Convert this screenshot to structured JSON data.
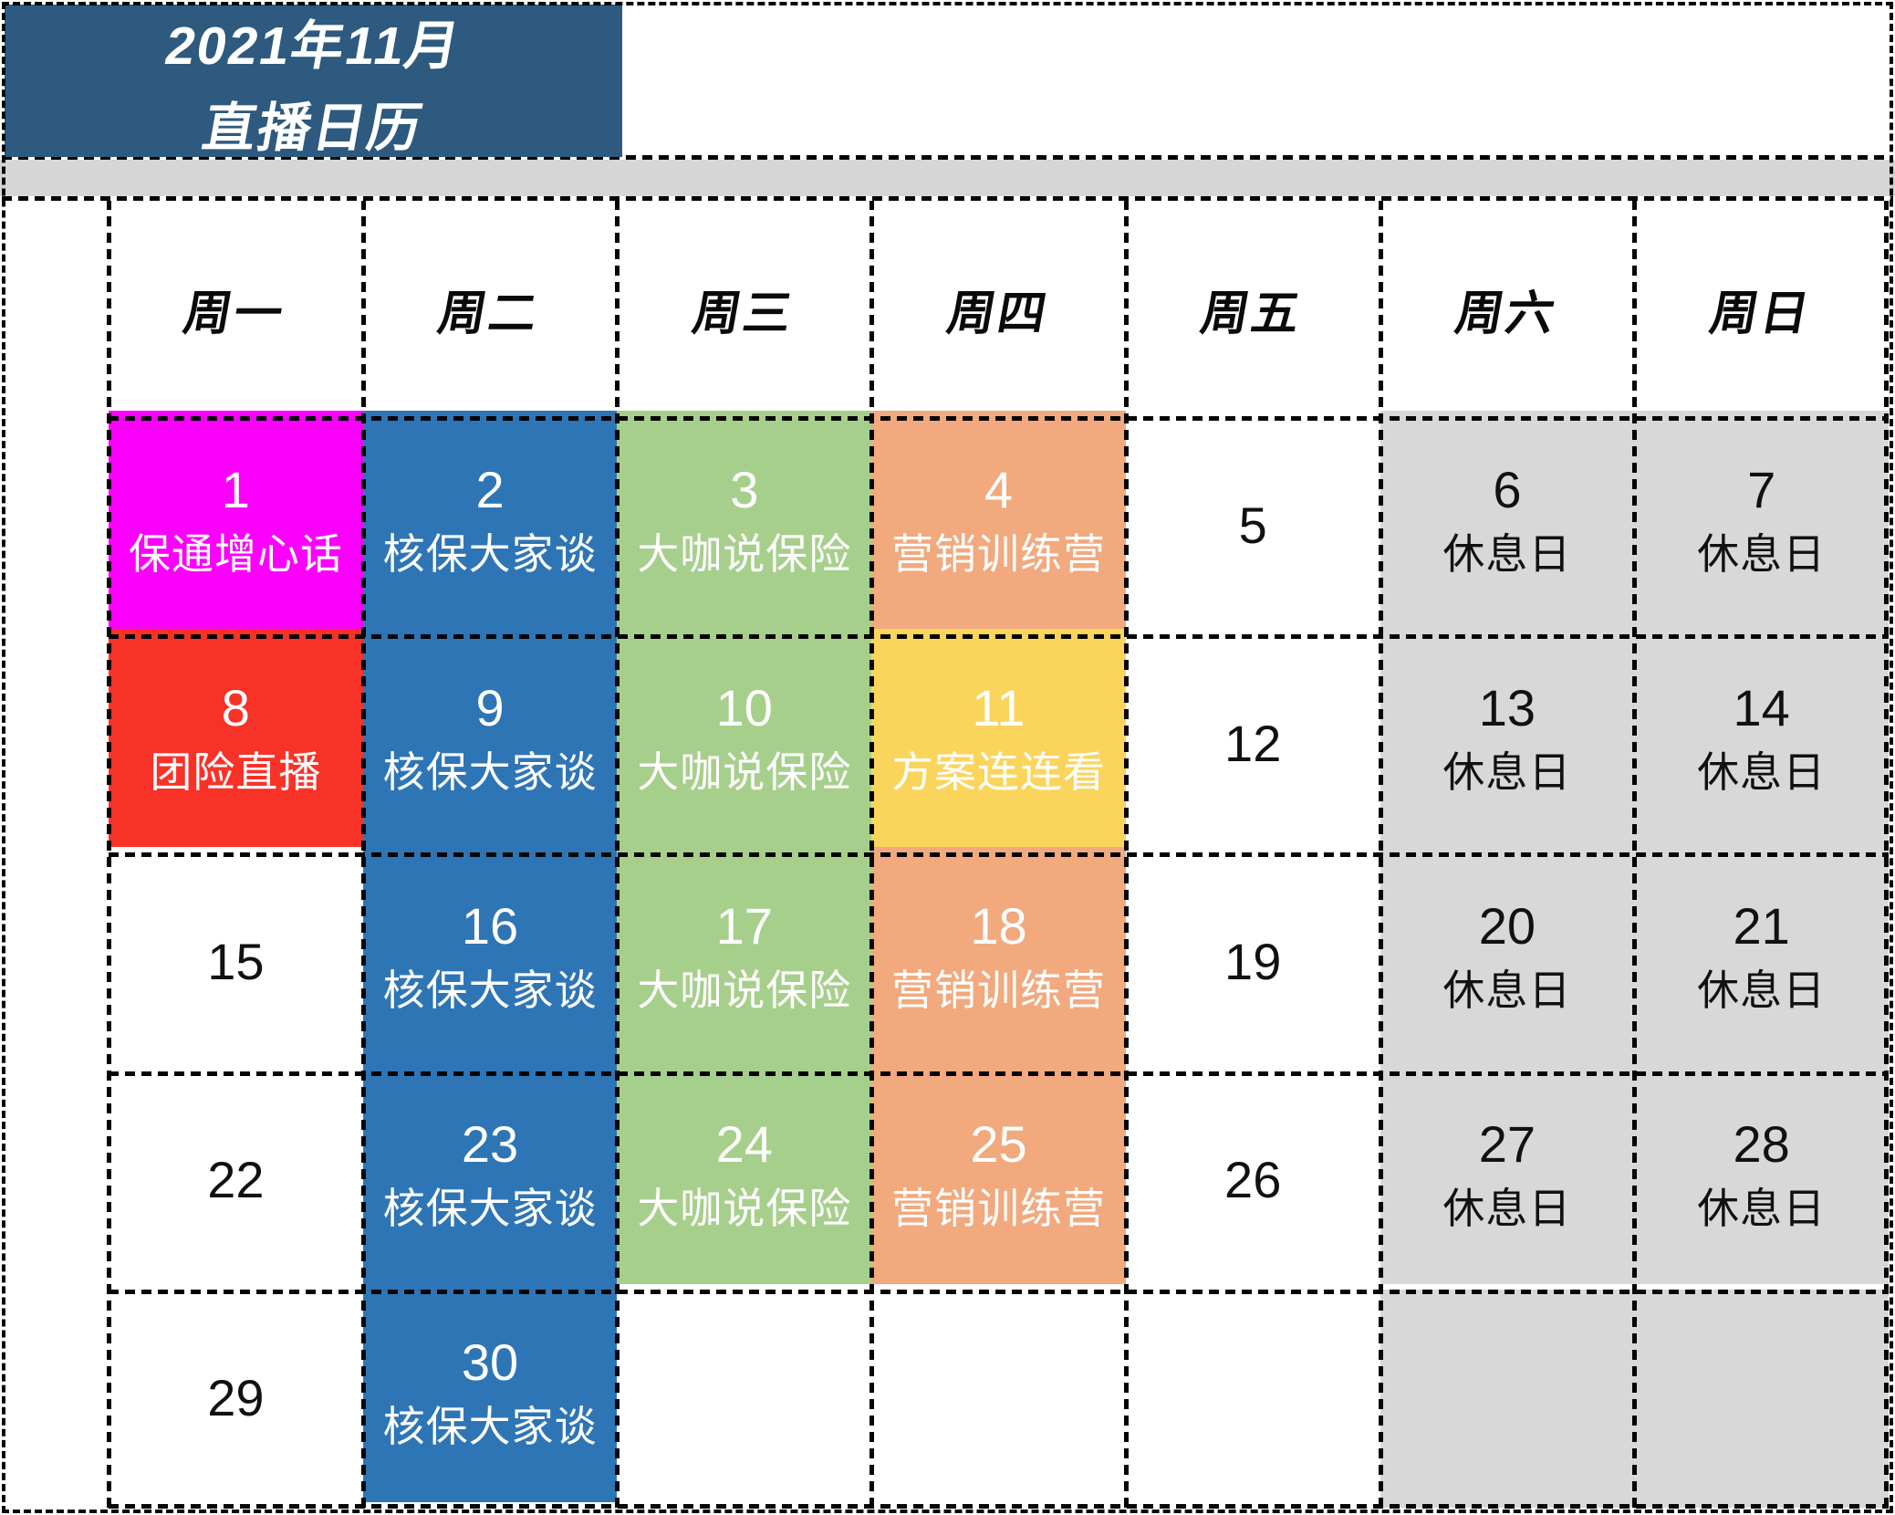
{
  "title": {
    "line1": "2021年11月",
    "line2": "直播日历"
  },
  "weekdays": [
    "周一",
    "周二",
    "周三",
    "周四",
    "周五",
    "周六",
    "周日"
  ],
  "colors": {
    "header_bg": "#2D5A7E",
    "strip_gray": "#D6D6D6",
    "magenta": "#FB00FB",
    "red": "#F93228",
    "blue": "#2E75B6",
    "green": "#A7CF8C",
    "orange": "#F1A97D",
    "yellow": "#FBD45C",
    "gray": "#D8D8D8",
    "white": "#FFFFFF",
    "text_light": "#FFFFFF",
    "text_dark": "#111111",
    "grid_line": "#050505"
  },
  "weeks": [
    [
      {
        "day": "1",
        "label": "保通增心话",
        "bg": "magenta",
        "fg": "light"
      },
      {
        "day": "2",
        "label": "核保大家谈",
        "bg": "blue",
        "fg": "light"
      },
      {
        "day": "3",
        "label": "大咖说保险",
        "bg": "green",
        "fg": "light"
      },
      {
        "day": "4",
        "label": "营销训练营",
        "bg": "orange",
        "fg": "light"
      },
      {
        "day": "5",
        "label": "",
        "bg": "white",
        "fg": "dark"
      },
      {
        "day": "6",
        "label": "休息日",
        "bg": "gray",
        "fg": "dark"
      },
      {
        "day": "7",
        "label": "休息日",
        "bg": "gray",
        "fg": "dark"
      }
    ],
    [
      {
        "day": "8",
        "label": "团险直播",
        "bg": "red",
        "fg": "light"
      },
      {
        "day": "9",
        "label": "核保大家谈",
        "bg": "blue",
        "fg": "light"
      },
      {
        "day": "10",
        "label": "大咖说保险",
        "bg": "green",
        "fg": "light"
      },
      {
        "day": "11",
        "label": "方案连连看",
        "bg": "yellow",
        "fg": "light"
      },
      {
        "day": "12",
        "label": "",
        "bg": "white",
        "fg": "dark"
      },
      {
        "day": "13",
        "label": "休息日",
        "bg": "gray",
        "fg": "dark"
      },
      {
        "day": "14",
        "label": "休息日",
        "bg": "gray",
        "fg": "dark"
      }
    ],
    [
      {
        "day": "15",
        "label": "",
        "bg": "white",
        "fg": "dark"
      },
      {
        "day": "16",
        "label": "核保大家谈",
        "bg": "blue",
        "fg": "light"
      },
      {
        "day": "17",
        "label": "大咖说保险",
        "bg": "green",
        "fg": "light"
      },
      {
        "day": "18",
        "label": "营销训练营",
        "bg": "orange",
        "fg": "light"
      },
      {
        "day": "19",
        "label": "",
        "bg": "white",
        "fg": "dark"
      },
      {
        "day": "20",
        "label": "休息日",
        "bg": "gray",
        "fg": "dark"
      },
      {
        "day": "21",
        "label": "休息日",
        "bg": "gray",
        "fg": "dark"
      }
    ],
    [
      {
        "day": "22",
        "label": "",
        "bg": "white",
        "fg": "dark"
      },
      {
        "day": "23",
        "label": "核保大家谈",
        "bg": "blue",
        "fg": "light"
      },
      {
        "day": "24",
        "label": "大咖说保险",
        "bg": "green",
        "fg": "light"
      },
      {
        "day": "25",
        "label": "营销训练营",
        "bg": "orange",
        "fg": "light"
      },
      {
        "day": "26",
        "label": "",
        "bg": "white",
        "fg": "dark"
      },
      {
        "day": "27",
        "label": "休息日",
        "bg": "gray",
        "fg": "dark"
      },
      {
        "day": "28",
        "label": "休息日",
        "bg": "gray",
        "fg": "dark"
      }
    ],
    [
      {
        "day": "29",
        "label": "",
        "bg": "white",
        "fg": "dark"
      },
      {
        "day": "30",
        "label": "核保大家谈",
        "bg": "blue",
        "fg": "light"
      },
      {
        "day": "",
        "label": "",
        "bg": "white",
        "fg": "dark"
      },
      {
        "day": "",
        "label": "",
        "bg": "white",
        "fg": "dark"
      },
      {
        "day": "",
        "label": "",
        "bg": "white",
        "fg": "dark"
      },
      {
        "day": "",
        "label": "",
        "bg": "gray",
        "fg": "dark"
      },
      {
        "day": "",
        "label": "",
        "bg": "gray",
        "fg": "dark"
      }
    ]
  ]
}
